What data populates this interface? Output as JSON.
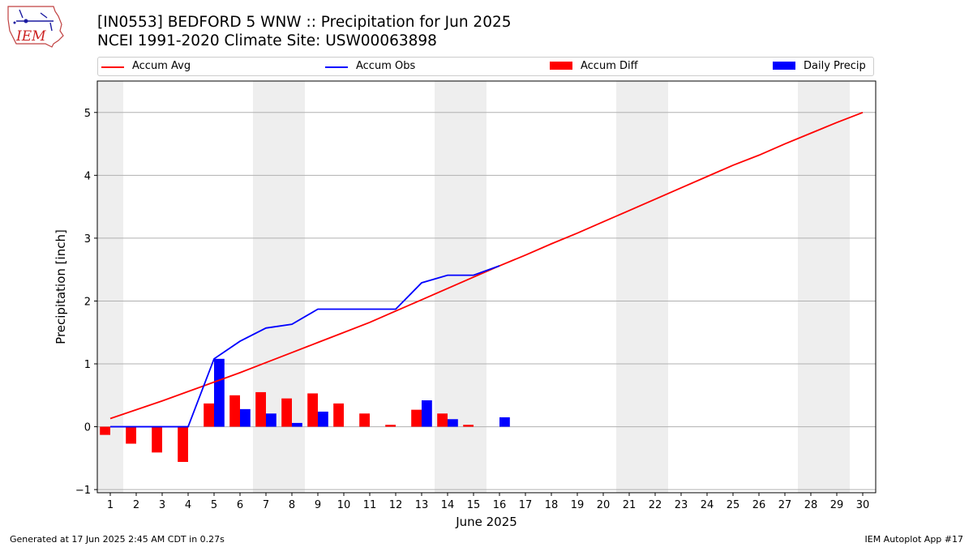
{
  "header": {
    "title": "[IN0553] BEDFORD 5 WNW :: Precipitation for Jun 2025",
    "subtitle": "NCEI 1991-2020 Climate Site: USW00063898"
  },
  "logo": {
    "text": "IEM"
  },
  "legend": [
    {
      "label": "Accum Avg",
      "color": "#ff0000",
      "kind": "line"
    },
    {
      "label": "Accum Obs",
      "color": "#0000ff",
      "kind": "line"
    },
    {
      "label": "Accum Diff",
      "color": "#ff0000",
      "kind": "patch"
    },
    {
      "label": "Daily Precip",
      "color": "#0000ff",
      "kind": "patch"
    }
  ],
  "chart_data": {
    "type": "bar",
    "xlabel": "June 2025",
    "ylabel": "Precipitation [inch]",
    "xlim": [
      0.5,
      30.5
    ],
    "ylim": [
      -1.05,
      5.5
    ],
    "yticks": [
      -1,
      0,
      1,
      2,
      3,
      4,
      5
    ],
    "x": [
      1,
      2,
      3,
      4,
      5,
      6,
      7,
      8,
      9,
      10,
      11,
      12,
      13,
      14,
      15,
      16,
      17,
      18,
      19,
      20,
      21,
      22,
      23,
      24,
      25,
      26,
      27,
      28,
      29,
      30
    ],
    "weekend_days": [
      1,
      7,
      8,
      14,
      15,
      21,
      22,
      28,
      29
    ],
    "grid": "horizontal",
    "series": [
      {
        "name": "Accum Avg",
        "kind": "line",
        "color": "#ff0000",
        "x": [
          1,
          2,
          3,
          4,
          5,
          6,
          7,
          8,
          9,
          10,
          11,
          12,
          13,
          14,
          15,
          16,
          17,
          18,
          19,
          20,
          21,
          22,
          23,
          24,
          25,
          26,
          27,
          28,
          29,
          30
        ],
        "values": [
          0.13,
          0.27,
          0.41,
          0.56,
          0.71,
          0.86,
          1.02,
          1.18,
          1.34,
          1.5,
          1.66,
          1.84,
          2.02,
          2.2,
          2.38,
          2.56,
          2.73,
          2.91,
          3.08,
          3.26,
          3.44,
          3.62,
          3.8,
          3.98,
          4.16,
          4.32,
          4.5,
          4.67,
          4.84,
          5.0
        ]
      },
      {
        "name": "Accum Obs",
        "kind": "line",
        "color": "#0000ff",
        "x": [
          1,
          2,
          3,
          4,
          5,
          6,
          7,
          8,
          9,
          10,
          11,
          12,
          13,
          14,
          15,
          16
        ],
        "values": [
          0.0,
          0.0,
          0.0,
          0.0,
          1.08,
          1.36,
          1.57,
          1.63,
          1.87,
          1.87,
          1.87,
          1.87,
          2.29,
          2.41,
          2.41,
          2.56
        ]
      },
      {
        "name": "Accum Diff",
        "kind": "bar",
        "color": "#ff0000",
        "offset": "left",
        "x": [
          1,
          2,
          3,
          4,
          5,
          6,
          7,
          8,
          9,
          10,
          11,
          12,
          13,
          14,
          15
        ],
        "values": [
          -0.13,
          -0.27,
          -0.41,
          -0.56,
          0.37,
          0.5,
          0.55,
          0.45,
          0.53,
          0.37,
          0.21,
          0.03,
          0.27,
          0.21,
          0.03
        ]
      },
      {
        "name": "Daily Precip",
        "kind": "bar",
        "color": "#0000ff",
        "offset": "right",
        "x": [
          5,
          6,
          7,
          8,
          9,
          13,
          14,
          16
        ],
        "values": [
          1.08,
          0.28,
          0.21,
          0.06,
          0.24,
          0.42,
          0.12,
          0.15
        ]
      }
    ]
  },
  "footer": {
    "left": "Generated at 17 Jun 2025 2:45 AM CDT in 0.27s",
    "right": "IEM Autoplot App #17"
  }
}
